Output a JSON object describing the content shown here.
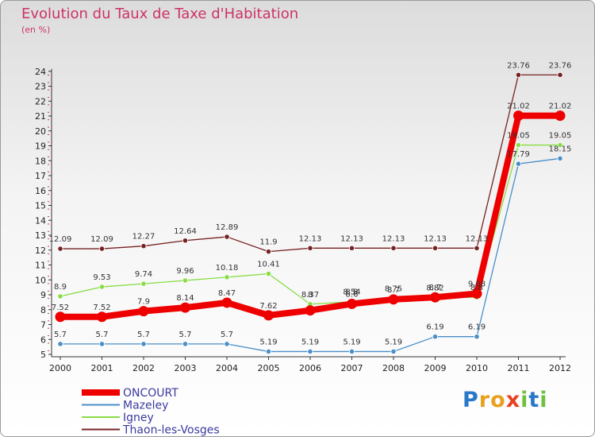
{
  "chart_data": {
    "type": "line",
    "title": "Evolution du Taux de Taxe d'Habitation",
    "ylabel": "(en %)",
    "xlabel": "",
    "categories": [
      "2000",
      "2001",
      "2002",
      "2003",
      "2004",
      "2005",
      "2006",
      "2007",
      "2008",
      "2009",
      "2010",
      "2011",
      "2012"
    ],
    "ylim": [
      5,
      24
    ],
    "yticks": [
      5,
      6,
      7,
      8,
      9,
      10,
      11,
      12,
      13,
      14,
      15,
      16,
      17,
      18,
      19,
      20,
      21,
      22,
      23,
      24
    ],
    "grid": false,
    "legend_position": "bottom-left",
    "series": [
      {
        "name": "ONCOURT",
        "color": "#ee0000",
        "values": [
          7.52,
          7.52,
          7.9,
          8.14,
          8.47,
          7.62,
          7.95,
          8.39,
          8.69,
          8.83,
          9.08,
          21.02,
          21.02
        ],
        "labels": [
          "7.52",
          "7.52",
          "7.9",
          "8.14",
          "8.47",
          "7.62",
          "",
          "",
          "",
          "",
          "9.08",
          "21.02",
          "21.02"
        ]
      },
      {
        "name": "Mazeley",
        "color": "#4a8fc8",
        "values": [
          5.7,
          5.7,
          5.7,
          5.7,
          5.7,
          5.19,
          5.19,
          5.19,
          5.19,
          6.19,
          6.19,
          17.79,
          18.15
        ],
        "labels": [
          "5.7",
          "5.7",
          "5.7",
          "5.7",
          "5.7",
          "5.19",
          "5.19",
          "5.19",
          "5.19",
          "6.19",
          "6.19",
          "17.79",
          "18.15"
        ]
      },
      {
        "name": "Igney",
        "color": "#88dd44",
        "values": [
          8.9,
          9.53,
          9.74,
          9.96,
          10.18,
          10.41,
          8.37,
          8.54,
          8.75,
          8.82,
          8.83,
          19.05,
          19.05
        ],
        "labels": [
          "8.9",
          "9.53",
          "9.74",
          "9.96",
          "10.18",
          "10.41",
          "8.37",
          "8.54",
          "8.75",
          "8.82",
          "8.8",
          "19.05",
          "19.05"
        ]
      },
      {
        "name": "Thaon-les-Vosges",
        "color": "#772222",
        "values": [
          12.09,
          12.09,
          12.27,
          12.64,
          12.89,
          11.9,
          12.13,
          12.13,
          12.13,
          12.13,
          12.13,
          23.76,
          23.76
        ],
        "labels": [
          "12.09",
          "12.09",
          "12.27",
          "12.64",
          "12.89",
          "11.9",
          "12.13",
          "12.13",
          "12.13",
          "12.13",
          "12.13",
          "23.76",
          "23.76"
        ]
      }
    ],
    "overlap_labels": [
      "8",
      "8.6",
      "8.7",
      "8.7",
      "8.8"
    ]
  },
  "brand": {
    "letters": [
      {
        "ch": "P",
        "color": "#2a78c8"
      },
      {
        "ch": "r",
        "color": "#e8a020"
      },
      {
        "ch": "o",
        "color": "#e8a020"
      },
      {
        "ch": "x",
        "color": "#e84020"
      },
      {
        "ch": "i",
        "color": "#70c040"
      },
      {
        "ch": "t",
        "color": "#2a78c8"
      },
      {
        "ch": "i",
        "color": "#70c040"
      }
    ]
  }
}
